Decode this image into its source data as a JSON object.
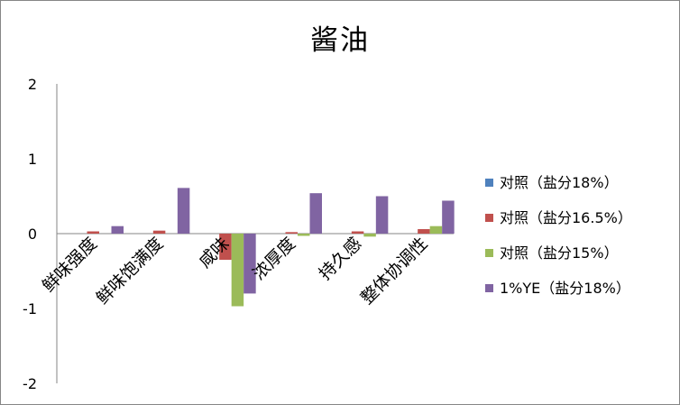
{
  "chart_data": {
    "type": "bar",
    "title": "酱油",
    "xlabel": "",
    "ylabel": "",
    "ylim": [
      -2,
      2
    ],
    "yticks": [
      2,
      1,
      0,
      -1,
      -2
    ],
    "ytick_labels": [
      "2",
      "1",
      "0",
      "-1",
      "-2"
    ],
    "categories": [
      "鲜味强度",
      "鲜味饱满度",
      "咸味",
      "浓厚度",
      "持久感",
      "整体协调性"
    ],
    "series": [
      {
        "name": "对照（盐分18%）",
        "color": "#4F81BD",
        "values": [
          0,
          0,
          0,
          0,
          0,
          0
        ]
      },
      {
        "name": "对照（盐分16.5%）",
        "color": "#C0504D",
        "values": [
          0.03,
          0.04,
          -0.35,
          0.02,
          0.03,
          0.06
        ]
      },
      {
        "name": "对照（盐分15%）",
        "color": "#9BBB59",
        "values": [
          0,
          0,
          -0.97,
          -0.03,
          -0.04,
          0.1
        ]
      },
      {
        "name": "1%YE（盐分18%）",
        "color": "#8064A2",
        "values": [
          0.1,
          0.61,
          -0.8,
          0.54,
          0.5,
          0.44
        ]
      }
    ],
    "grid": false,
    "legend_position": "right"
  }
}
